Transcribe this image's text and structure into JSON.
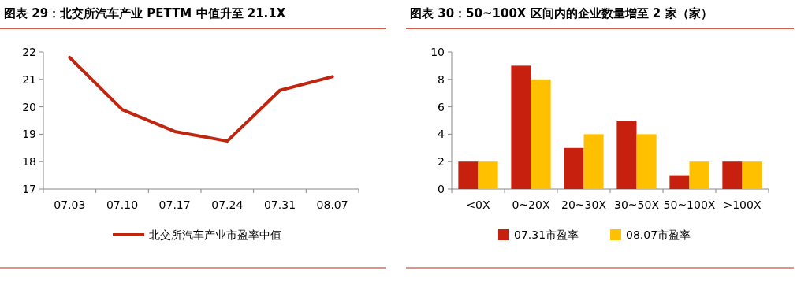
{
  "chart_data": [
    {
      "type": "line",
      "title": "图表 29：北交所汽车产业 PETTM 中值升至 21.1X",
      "categories": [
        "07.03",
        "07.10",
        "07.17",
        "07.24",
        "07.31",
        "08.07"
      ],
      "series": [
        {
          "name": "北交所汽车产业市盈率中值",
          "color": "#c0260f",
          "values": [
            21.8,
            19.9,
            19.1,
            18.75,
            20.6,
            21.1
          ]
        }
      ],
      "ylim": [
        17,
        22
      ],
      "yticks": [
        17,
        18,
        19,
        20,
        21,
        22
      ],
      "legend": "bottom",
      "grid": false
    },
    {
      "type": "bar",
      "title": "图表 30：50~100X 区间内的企业数量增至 2 家（家）",
      "categories": [
        "<0X",
        "0~20X",
        "20~30X",
        "30~50X",
        "50~100X",
        ">100X"
      ],
      "series": [
        {
          "name": "07.31市盈率",
          "color": "#c8200e",
          "values": [
            2,
            9,
            3,
            5,
            1,
            2
          ]
        },
        {
          "name": "08.07市盈率",
          "color": "#ffc000",
          "values": [
            2,
            8,
            4,
            4,
            2,
            2
          ]
        }
      ],
      "ylim": [
        0,
        10
      ],
      "yticks": [
        0,
        2,
        4,
        6,
        8,
        10
      ],
      "legend": "bottom",
      "grid": false
    }
  ]
}
